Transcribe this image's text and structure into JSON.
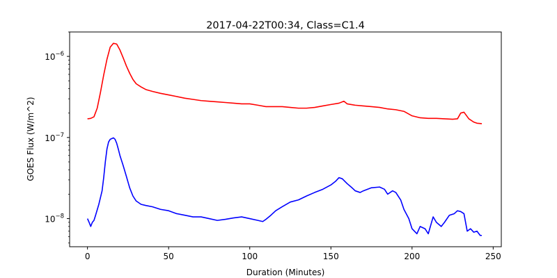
{
  "chart_data": {
    "type": "line",
    "title": "2017-04-22T00:34, Class=C1.4",
    "xlabel": "Duration (Minutes)",
    "ylabel": "GOES Flux (W/m^2)",
    "yscale": "log",
    "xlim": [
      -11,
      255
    ],
    "ylim": [
      4.5e-09,
      2e-06
    ],
    "grid": false,
    "legend": "none",
    "x_ticks": [
      0,
      50,
      100,
      150,
      200,
      250
    ],
    "x_tick_labels": [
      "0",
      "50",
      "100",
      "150",
      "200",
      "250"
    ],
    "y_ticks": [
      1e-08,
      1e-07,
      1e-06
    ],
    "y_tick_labels": [
      "10^-8",
      "10^-7",
      "10^-6"
    ],
    "series": [
      {
        "color": "#ff0000",
        "points": [
          [
            0,
            1.7e-07
          ],
          [
            2,
            1.72e-07
          ],
          [
            4,
            1.8e-07
          ],
          [
            6,
            2.3e-07
          ],
          [
            8,
            3.6e-07
          ],
          [
            10,
            5.9e-07
          ],
          [
            12,
            9.2e-07
          ],
          [
            14,
            1.3e-06
          ],
          [
            16,
            1.45e-06
          ],
          [
            18,
            1.42e-06
          ],
          [
            20,
            1.2e-06
          ],
          [
            22,
            9.6e-07
          ],
          [
            24,
            7.6e-07
          ],
          [
            26,
            6.2e-07
          ],
          [
            28,
            5.2e-07
          ],
          [
            30,
            4.6e-07
          ],
          [
            33,
            4.2e-07
          ],
          [
            36,
            3.9e-07
          ],
          [
            40,
            3.7e-07
          ],
          [
            45,
            3.5e-07
          ],
          [
            50,
            3.35e-07
          ],
          [
            55,
            3.2e-07
          ],
          [
            60,
            3.05e-07
          ],
          [
            65,
            2.95e-07
          ],
          [
            70,
            2.85e-07
          ],
          [
            75,
            2.8e-07
          ],
          [
            80,
            2.75e-07
          ],
          [
            85,
            2.7e-07
          ],
          [
            90,
            2.65e-07
          ],
          [
            95,
            2.6e-07
          ],
          [
            100,
            2.6e-07
          ],
          [
            105,
            2.5e-07
          ],
          [
            110,
            2.4e-07
          ],
          [
            115,
            2.4e-07
          ],
          [
            120,
            2.4e-07
          ],
          [
            125,
            2.35e-07
          ],
          [
            130,
            2.3e-07
          ],
          [
            135,
            2.3e-07
          ],
          [
            140,
            2.35e-07
          ],
          [
            145,
            2.45e-07
          ],
          [
            150,
            2.55e-07
          ],
          [
            155,
            2.65e-07
          ],
          [
            158,
            2.8e-07
          ],
          [
            160,
            2.6e-07
          ],
          [
            165,
            2.5e-07
          ],
          [
            170,
            2.45e-07
          ],
          [
            175,
            2.4e-07
          ],
          [
            180,
            2.35e-07
          ],
          [
            185,
            2.25e-07
          ],
          [
            190,
            2.2e-07
          ],
          [
            195,
            2.1e-07
          ],
          [
            200,
            1.85e-07
          ],
          [
            205,
            1.75e-07
          ],
          [
            210,
            1.72e-07
          ],
          [
            215,
            1.72e-07
          ],
          [
            220,
            1.7e-07
          ],
          [
            225,
            1.68e-07
          ],
          [
            228,
            1.7e-07
          ],
          [
            230,
            2e-07
          ],
          [
            232,
            2.05e-07
          ],
          [
            235,
            1.7e-07
          ],
          [
            238,
            1.55e-07
          ],
          [
            240,
            1.5e-07
          ],
          [
            243,
            1.48e-07
          ]
        ]
      },
      {
        "color": "#0000ff",
        "points": [
          [
            0,
            1e-08
          ],
          [
            1,
            9e-09
          ],
          [
            2,
            8e-09
          ],
          [
            3,
            9e-09
          ],
          [
            4,
            9.5e-09
          ],
          [
            5,
            1.1e-08
          ],
          [
            7,
            1.5e-08
          ],
          [
            9,
            2.2e-08
          ],
          [
            10,
            3.2e-08
          ],
          [
            11,
            5e-08
          ],
          [
            12,
            7.2e-08
          ],
          [
            13,
            8.8e-08
          ],
          [
            14,
            9.5e-08
          ],
          [
            15,
            9.7e-08
          ],
          [
            16,
            9.9e-08
          ],
          [
            17,
            9.5e-08
          ],
          [
            18,
            8.5e-08
          ],
          [
            19,
            7.2e-08
          ],
          [
            20,
            6e-08
          ],
          [
            22,
            4.5e-08
          ],
          [
            24,
            3.3e-08
          ],
          [
            26,
            2.4e-08
          ],
          [
            28,
            1.9e-08
          ],
          [
            30,
            1.65e-08
          ],
          [
            33,
            1.5e-08
          ],
          [
            36,
            1.45e-08
          ],
          [
            40,
            1.4e-08
          ],
          [
            45,
            1.3e-08
          ],
          [
            50,
            1.25e-08
          ],
          [
            55,
            1.15e-08
          ],
          [
            60,
            1.1e-08
          ],
          [
            65,
            1.05e-08
          ],
          [
            70,
            1.05e-08
          ],
          [
            75,
            1e-08
          ],
          [
            80,
            9.5e-09
          ],
          [
            85,
            9.8e-09
          ],
          [
            90,
            1.02e-08
          ],
          [
            95,
            1.05e-08
          ],
          [
            100,
            1e-08
          ],
          [
            105,
            9.5e-09
          ],
          [
            108,
            9.2e-09
          ],
          [
            110,
            9.8e-09
          ],
          [
            113,
            1.1e-08
          ],
          [
            116,
            1.25e-08
          ],
          [
            120,
            1.4e-08
          ],
          [
            125,
            1.6e-08
          ],
          [
            130,
            1.7e-08
          ],
          [
            135,
            1.9e-08
          ],
          [
            140,
            2.1e-08
          ],
          [
            145,
            2.3e-08
          ],
          [
            150,
            2.6e-08
          ],
          [
            153,
            2.9e-08
          ],
          [
            155,
            3.2e-08
          ],
          [
            157,
            3.1e-08
          ],
          [
            160,
            2.7e-08
          ],
          [
            163,
            2.4e-08
          ],
          [
            165,
            2.2e-08
          ],
          [
            168,
            2.1e-08
          ],
          [
            170,
            2.2e-08
          ],
          [
            175,
            2.4e-08
          ],
          [
            180,
            2.45e-08
          ],
          [
            183,
            2.3e-08
          ],
          [
            185,
            2e-08
          ],
          [
            188,
            2.2e-08
          ],
          [
            190,
            2.1e-08
          ],
          [
            193,
            1.7e-08
          ],
          [
            195,
            1.3e-08
          ],
          [
            198,
            1e-08
          ],
          [
            200,
            7.5e-09
          ],
          [
            203,
            6.5e-09
          ],
          [
            205,
            8e-09
          ],
          [
            208,
            7.5e-09
          ],
          [
            210,
            6.5e-09
          ],
          [
            213,
            1.05e-08
          ],
          [
            215,
            9e-09
          ],
          [
            218,
            8e-09
          ],
          [
            220,
            9e-09
          ],
          [
            223,
            1.1e-08
          ],
          [
            226,
            1.15e-08
          ],
          [
            228,
            1.25e-08
          ],
          [
            230,
            1.22e-08
          ],
          [
            232,
            1.15e-08
          ],
          [
            234,
            7e-09
          ],
          [
            236,
            7.5e-09
          ],
          [
            238,
            6.8e-09
          ],
          [
            240,
            7e-09
          ],
          [
            242,
            6.2e-09
          ],
          [
            243,
            6.2e-09
          ]
        ]
      }
    ]
  }
}
